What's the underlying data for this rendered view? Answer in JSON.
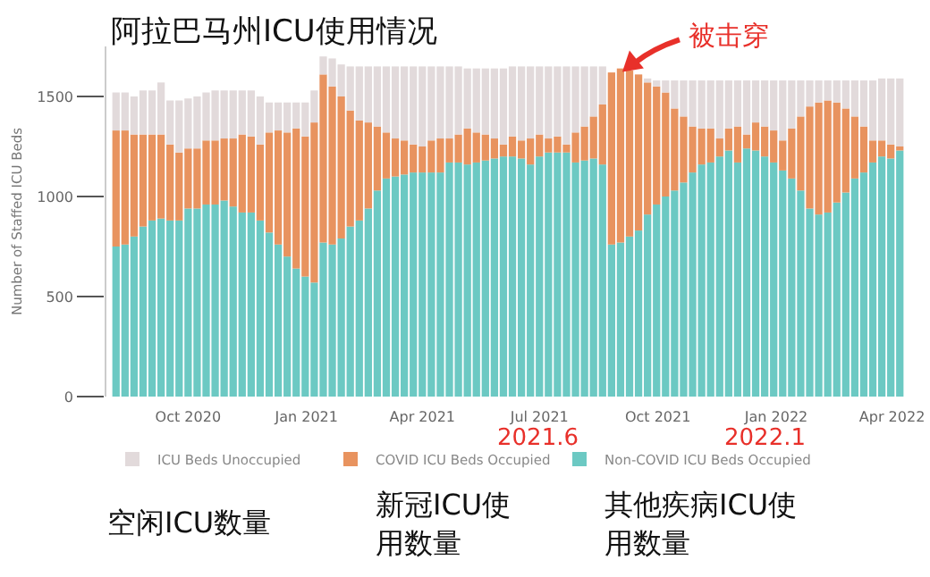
{
  "chart_data": {
    "type": "bar",
    "stacked": true,
    "title": "阿拉巴马州ICU使用情况",
    "ylabel": "Number of Staffed ICU Beds",
    "x": [
      "2020-08-06",
      "2020-08-13",
      "2020-08-20",
      "2020-08-27",
      "2020-09-03",
      "2020-09-10",
      "2020-09-17",
      "2020-09-24",
      "2020-10-01",
      "2020-10-08",
      "2020-10-15",
      "2020-10-22",
      "2020-10-29",
      "2020-11-05",
      "2020-11-12",
      "2020-11-19",
      "2020-11-26",
      "2020-12-03",
      "2020-12-10",
      "2020-12-17",
      "2020-12-24",
      "2020-12-31",
      "2021-01-07",
      "2021-01-14",
      "2021-01-21",
      "2021-01-28",
      "2021-02-04",
      "2021-02-11",
      "2021-02-18",
      "2021-02-25",
      "2021-03-04",
      "2021-03-11",
      "2021-03-18",
      "2021-03-25",
      "2021-04-01",
      "2021-04-08",
      "2021-04-15",
      "2021-04-22",
      "2021-04-29",
      "2021-05-06",
      "2021-05-13",
      "2021-05-20",
      "2021-05-27",
      "2021-06-03",
      "2021-06-10",
      "2021-06-17",
      "2021-06-24",
      "2021-07-01",
      "2021-07-08",
      "2021-07-15",
      "2021-07-22",
      "2021-07-29",
      "2021-08-05",
      "2021-08-12",
      "2021-08-19",
      "2021-08-26",
      "2021-09-02",
      "2021-09-09",
      "2021-09-16",
      "2021-09-23",
      "2021-09-30",
      "2021-10-07",
      "2021-10-14",
      "2021-10-21",
      "2021-10-28",
      "2021-11-04",
      "2021-11-11",
      "2021-11-18",
      "2021-11-25",
      "2021-12-02",
      "2021-12-09",
      "2021-12-16",
      "2021-12-23",
      "2021-12-30",
      "2022-01-06",
      "2022-01-13",
      "2022-01-20",
      "2022-01-27",
      "2022-02-03",
      "2022-02-10",
      "2022-02-17",
      "2022-02-24",
      "2022-03-03",
      "2022-03-10",
      "2022-03-17",
      "2022-03-24",
      "2022-03-31",
      "2022-04-07"
    ],
    "series": [
      {
        "name": "Non-COVID ICU Beds Occupied",
        "color": "#6cc9c3",
        "values": [
          750,
          760,
          800,
          850,
          880,
          890,
          880,
          880,
          940,
          940,
          960,
          960,
          980,
          950,
          920,
          920,
          880,
          820,
          760,
          700,
          640,
          600,
          570,
          770,
          760,
          790,
          850,
          880,
          940,
          1030,
          1090,
          1100,
          1110,
          1120,
          1120,
          1120,
          1120,
          1170,
          1170,
          1160,
          1170,
          1180,
          1190,
          1200,
          1200,
          1190,
          1160,
          1200,
          1220,
          1220,
          1220,
          1170,
          1180,
          1190,
          1160,
          760,
          770,
          800,
          830,
          910,
          960,
          1000,
          1030,
          1070,
          1120,
          1160,
          1170,
          1200,
          1230,
          1170,
          1240,
          1230,
          1200,
          1170,
          1130,
          1090,
          1030,
          940,
          910,
          920,
          970,
          1020,
          1090,
          1120,
          1170,
          1200,
          1190,
          1230
        ]
      },
      {
        "name": "COVID ICU Beds Occupied",
        "color": "#e8935f",
        "values": [
          580,
          570,
          510,
          460,
          430,
          420,
          380,
          340,
          300,
          300,
          320,
          320,
          310,
          340,
          390,
          380,
          380,
          500,
          570,
          620,
          700,
          700,
          800,
          840,
          790,
          710,
          580,
          500,
          430,
          320,
          230,
          190,
          170,
          140,
          130,
          160,
          170,
          120,
          140,
          180,
          150,
          130,
          100,
          60,
          100,
          90,
          130,
          110,
          70,
          80,
          40,
          150,
          170,
          210,
          300,
          860,
          870,
          830,
          780,
          660,
          590,
          520,
          410,
          330,
          230,
          180,
          170,
          90,
          110,
          180,
          70,
          140,
          150,
          160,
          150,
          250,
          370,
          510,
          560,
          560,
          500,
          420,
          310,
          230,
          110,
          80,
          70,
          20
        ]
      },
      {
        "name": "ICU Beds Unoccupied",
        "color": "#e2dadb",
        "values": [
          190,
          190,
          190,
          220,
          220,
          260,
          220,
          260,
          250,
          260,
          240,
          250,
          240,
          240,
          220,
          230,
          240,
          150,
          140,
          150,
          130,
          170,
          160,
          90,
          140,
          160,
          220,
          270,
          280,
          300,
          330,
          360,
          370,
          390,
          400,
          370,
          360,
          360,
          340,
          300,
          320,
          330,
          350,
          380,
          350,
          370,
          360,
          340,
          360,
          350,
          390,
          330,
          300,
          250,
          190,
          null,
          null,
          null,
          null,
          20,
          30,
          60,
          140,
          180,
          230,
          240,
          240,
          290,
          240,
          230,
          270,
          210,
          230,
          250,
          300,
          240,
          180,
          130,
          110,
          100,
          110,
          140,
          180,
          230,
          300,
          310,
          330,
          340
        ]
      }
    ],
    "xlim": [
      "2020-08-02",
      "2022-04-11"
    ],
    "xticks": [
      {
        "value": "2020-10-01",
        "label": "Oct 2020"
      },
      {
        "value": "2021-01-01",
        "label": "Jan 2021"
      },
      {
        "value": "2021-04-01",
        "label": "Apr 2021"
      },
      {
        "value": "2021-07-01",
        "label": "Jul 2021"
      },
      {
        "value": "2021-10-01",
        "label": "Oct 2021"
      },
      {
        "value": "2022-01-01",
        "label": "Jan 2022"
      },
      {
        "value": "2022-04-01",
        "label": "Apr 2022"
      }
    ],
    "ylim": [
      0,
      1750
    ],
    "yticks": [
      0,
      500,
      1000,
      1500
    ],
    "legend": "bottom",
    "annotations": [
      {
        "text": "被击穿",
        "x": "2021-09-02",
        "y": 1650
      },
      "2021.6",
      "2022.1",
      "空闲ICU数量",
      "新冠ICU使用数量",
      "其他疾病ICU使用数量"
    ]
  }
}
